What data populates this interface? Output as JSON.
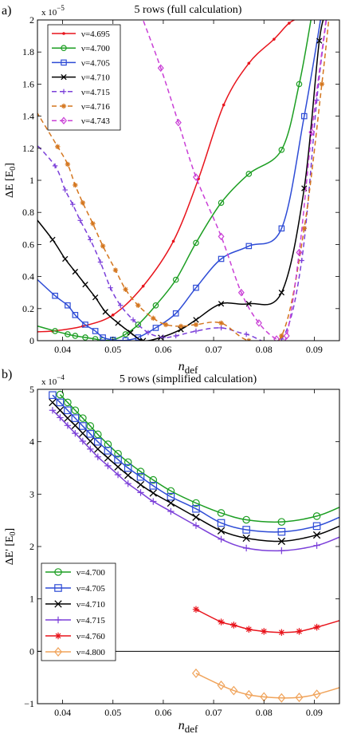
{
  "chart_data": [
    {
      "type": "line",
      "panel_label": "a)",
      "title": "5 rows (full calculation)",
      "xlabel_main": "n",
      "xlabel_sub": "def",
      "ylabel": "ΔE [E",
      "ylabel_sub": "0",
      "ylabel_end": "]",
      "exponent_base": "x 10",
      "exponent_power": "−5",
      "xlim": [
        0.035,
        0.095
      ],
      "ylim": [
        0,
        2
      ],
      "xticks": [
        0.04,
        0.05,
        0.06,
        0.07,
        0.08,
        0.09
      ],
      "xtick_labels": [
        "0.04",
        "0.05",
        "0.06",
        "0.07",
        "0.08",
        "0.09"
      ],
      "yticks": [
        0,
        0.2,
        0.4,
        0.6,
        0.8,
        1,
        1.2,
        1.4,
        1.6,
        1.8,
        2
      ],
      "ytick_labels": [
        "0",
        "0.2",
        "0.4",
        "0.6",
        "0.8",
        "1",
        "1.2",
        "1.4",
        "1.6",
        "1.8",
        "2"
      ],
      "grid": false,
      "legend_position": "top-left",
      "series": [
        {
          "name": "ν=4.695",
          "color": "#e8141c",
          "marker": "dot",
          "dash": "solid",
          "x": [
            0.033,
            0.038,
            0.044,
            0.05,
            0.056,
            0.062,
            0.067,
            0.072,
            0.077,
            0.082,
            0.085,
            0.0875
          ],
          "y": [
            0.055,
            0.06,
            0.09,
            0.16,
            0.34,
            0.62,
            1.01,
            1.47,
            1.73,
            1.88,
            1.98,
            2.02
          ]
        },
        {
          "name": "ν=4.700",
          "color": "#1c9e22",
          "marker": "circle",
          "dash": "solid",
          "x": [
            0.034,
            0.0385,
            0.041,
            0.0425,
            0.0445,
            0.0465,
            0.048,
            0.05,
            0.0525,
            0.055,
            0.0585,
            0.0625,
            0.0665,
            0.0715,
            0.077,
            0.0835,
            0.087,
            0.0895
          ],
          "y": [
            0.1,
            0.06,
            0.04,
            0.03,
            0.02,
            0.01,
            0.003,
            0.005,
            0.04,
            0.1,
            0.22,
            0.38,
            0.61,
            0.86,
            1.04,
            1.19,
            1.6,
            2.03
          ]
        },
        {
          "name": "ν=4.705",
          "color": "#2e4cd6",
          "marker": "square",
          "dash": "solid",
          "x": [
            0.034,
            0.0385,
            0.041,
            0.0425,
            0.0445,
            0.0465,
            0.048,
            0.05,
            0.0525,
            0.055,
            0.0585,
            0.0625,
            0.0665,
            0.0715,
            0.077,
            0.0835,
            0.088,
            0.0915
          ],
          "y": [
            0.41,
            0.28,
            0.22,
            0.16,
            0.1,
            0.06,
            0.02,
            0.005,
            0.002,
            0.02,
            0.08,
            0.17,
            0.33,
            0.51,
            0.59,
            0.7,
            1.4,
            2.05
          ]
        },
        {
          "name": "ν=4.710",
          "color": "#000000",
          "marker": "x",
          "dash": "solid",
          "x": [
            0.034,
            0.038,
            0.0405,
            0.0425,
            0.0445,
            0.0465,
            0.0485,
            0.051,
            0.0535,
            0.056,
            0.0595,
            0.0635,
            0.0665,
            0.0715,
            0.077,
            0.0835,
            0.088,
            0.091,
            0.0925
          ],
          "y": [
            0.79,
            0.63,
            0.51,
            0.43,
            0.35,
            0.27,
            0.18,
            0.11,
            0.05,
            0.0,
            0.02,
            0.07,
            0.13,
            0.23,
            0.23,
            0.3,
            0.95,
            1.87,
            2.04
          ]
        },
        {
          "name": "ν=4.715",
          "color": "#7b3fd9",
          "marker": "plus",
          "dash": "dashed",
          "x": [
            0.034,
            0.0385,
            0.0405,
            0.042,
            0.0435,
            0.0455,
            0.0475,
            0.0495,
            0.0515,
            0.054,
            0.057,
            0.06,
            0.0625,
            0.0665,
            0.0715,
            0.0765,
            0.0835,
            0.0875,
            0.0905,
            0.0925
          ],
          "y": [
            1.25,
            1.09,
            0.94,
            0.85,
            0.75,
            0.63,
            0.49,
            0.33,
            0.22,
            0.13,
            0.05,
            0.02,
            0.03,
            0.06,
            0.08,
            0.04,
            0.01,
            0.5,
            1.5,
            2.03
          ]
        },
        {
          "name": "ν=4.716",
          "color": "#d4761e",
          "marker": "asterisk",
          "dash": "dashed",
          "x": [
            0.034,
            0.039,
            0.041,
            0.0425,
            0.044,
            0.046,
            0.048,
            0.0505,
            0.0525,
            0.055,
            0.058,
            0.0605,
            0.0635,
            0.0665,
            0.0715,
            0.077,
            0.0835,
            0.088,
            0.0915,
            0.093
          ],
          "y": [
            1.47,
            1.21,
            1.1,
            0.97,
            0.86,
            0.73,
            0.59,
            0.44,
            0.32,
            0.22,
            0.14,
            0.1,
            0.09,
            0.1,
            0.11,
            0.0,
            0.03,
            0.7,
            1.6,
            2.04
          ]
        },
        {
          "name": "ν=4.743",
          "color": "#c93fd6",
          "marker": "diamond",
          "dash": "dashed",
          "x": [
            0.0555,
            0.0595,
            0.063,
            0.0665,
            0.0715,
            0.0755,
            0.079,
            0.0825,
            0.0845,
            0.087,
            0.0895,
            0.0925
          ],
          "y": [
            2.04,
            1.7,
            1.36,
            1.02,
            0.65,
            0.3,
            0.11,
            0.01,
            0.03,
            0.55,
            1.3,
            2.04
          ]
        }
      ]
    },
    {
      "type": "line",
      "panel_label": "b)",
      "title": "5 rows (simplified calculation)",
      "xlabel_main": "n",
      "xlabel_sub": "def",
      "ylabel": "ΔE' [E",
      "ylabel_sub": "0",
      "ylabel_end": "]",
      "exponent_base": "x 10",
      "exponent_power": "−4",
      "xlim": [
        0.035,
        0.095
      ],
      "ylim": [
        -1,
        5
      ],
      "xticks": [
        0.04,
        0.05,
        0.06,
        0.07,
        0.08,
        0.09
      ],
      "xtick_labels": [
        "0.04",
        "0.05",
        "0.06",
        "0.07",
        "0.08",
        "0.09"
      ],
      "yticks": [
        -1,
        0,
        1,
        2,
        3,
        4,
        5
      ],
      "ytick_labels": [
        "−1",
        "0",
        "1",
        "2",
        "3",
        "4",
        "5"
      ],
      "zero_line": true,
      "grid": false,
      "legend_position": "bottom-left",
      "series": [
        {
          "name": "ν=4.700",
          "color": "#1c9e22",
          "marker": "circle",
          "dash": "solid",
          "x": [
            0.0395,
            0.041,
            0.0425,
            0.044,
            0.0455,
            0.047,
            0.049,
            0.051,
            0.053,
            0.0555,
            0.058,
            0.0615,
            0.0665,
            0.0715,
            0.0765,
            0.0835,
            0.0905,
            0.0955
          ],
          "y": [
            4.9,
            4.75,
            4.6,
            4.45,
            4.3,
            4.14,
            3.95,
            3.77,
            3.61,
            3.43,
            3.27,
            3.06,
            2.83,
            2.64,
            2.51,
            2.47,
            2.58,
            2.77
          ]
        },
        {
          "name": "ν=4.705",
          "color": "#2e4cd6",
          "marker": "square",
          "dash": "solid",
          "x": [
            0.038,
            0.0395,
            0.041,
            0.0425,
            0.044,
            0.0455,
            0.047,
            0.049,
            0.051,
            0.053,
            0.0555,
            0.058,
            0.0615,
            0.0665,
            0.0715,
            0.0765,
            0.0835,
            0.0905,
            0.0955
          ],
          "y": [
            4.89,
            4.75,
            4.6,
            4.45,
            4.3,
            4.15,
            4.0,
            3.83,
            3.66,
            3.5,
            3.33,
            3.16,
            2.95,
            2.72,
            2.45,
            2.32,
            2.28,
            2.39,
            2.58
          ]
        },
        {
          "name": "ν=4.710",
          "color": "#000000",
          "marker": "x",
          "dash": "solid",
          "x": [
            0.038,
            0.0395,
            0.041,
            0.0425,
            0.044,
            0.0455,
            0.047,
            0.049,
            0.051,
            0.053,
            0.0555,
            0.058,
            0.0615,
            0.0665,
            0.0715,
            0.0765,
            0.0835,
            0.0905,
            0.0955
          ],
          "y": [
            4.75,
            4.6,
            4.45,
            4.31,
            4.16,
            4.01,
            3.86,
            3.69,
            3.52,
            3.36,
            3.18,
            3.02,
            2.83,
            2.56,
            2.3,
            2.16,
            2.1,
            2.22,
            2.41
          ]
        },
        {
          "name": "ν=4.715",
          "color": "#7b3fd9",
          "marker": "plus",
          "dash": "solid",
          "x": [
            0.038,
            0.0395,
            0.041,
            0.0425,
            0.044,
            0.0455,
            0.047,
            0.049,
            0.051,
            0.053,
            0.0555,
            0.058,
            0.0615,
            0.0665,
            0.0715,
            0.0765,
            0.0835,
            0.0905,
            0.0955
          ],
          "y": [
            4.6,
            4.46,
            4.31,
            4.16,
            4.01,
            3.86,
            3.71,
            3.54,
            3.37,
            3.2,
            3.03,
            2.86,
            2.67,
            2.4,
            2.14,
            1.97,
            1.92,
            2.02,
            2.2
          ]
        },
        {
          "name": "ν=4.760",
          "color": "#e8141c",
          "marker": "asterisk",
          "dash": "solid",
          "x": [
            0.0665,
            0.0715,
            0.074,
            0.077,
            0.08,
            0.0835,
            0.087,
            0.0905,
            0.0955
          ],
          "y": [
            0.8,
            0.56,
            0.5,
            0.42,
            0.38,
            0.36,
            0.38,
            0.46,
            0.6
          ]
        },
        {
          "name": "ν=4.800",
          "color": "#f0a35a",
          "marker": "diamond",
          "dash": "solid",
          "x": [
            0.0665,
            0.0715,
            0.074,
            0.077,
            0.08,
            0.0835,
            0.087,
            0.0905,
            0.0955
          ],
          "y": [
            -0.42,
            -0.65,
            -0.75,
            -0.83,
            -0.87,
            -0.89,
            -0.88,
            -0.82,
            -0.68
          ]
        }
      ]
    }
  ]
}
